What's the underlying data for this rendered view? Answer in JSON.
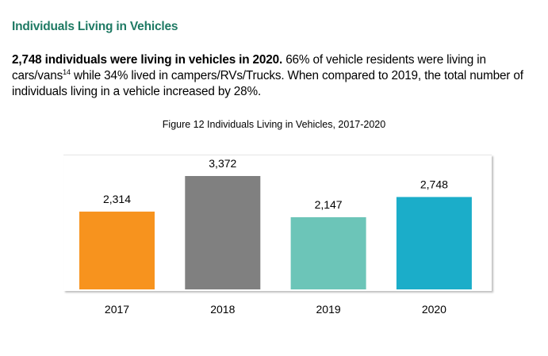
{
  "heading": "Individuals Living in Vehicles",
  "paragraph": {
    "bold_lead": "2,748 individuals were living in vehicles in 2020.",
    "text_1": " 66% of vehicle residents were living in cars/vans",
    "footnote": "14",
    "text_2": " while 34% lived in campers/RVs/Trucks. When compared to 2019, the total number of individuals living in a vehicle increased by 28%."
  },
  "chart_data": {
    "type": "bar",
    "title": "Figure 12 Individuals Living in Vehicles, 2017-2020",
    "xlabel": "",
    "ylabel": "",
    "categories": [
      "2017",
      "2018",
      "2019",
      "2020"
    ],
    "values": [
      2314,
      3372,
      2147,
      2748
    ],
    "data_labels": [
      "2,314",
      "3,372",
      "2,147",
      "2,748"
    ],
    "colors": [
      "#f7931e",
      "#808080",
      "#6cc5b8",
      "#1badc9"
    ],
    "ylim": [
      0,
      3372
    ],
    "grid": false,
    "legend": "none"
  }
}
